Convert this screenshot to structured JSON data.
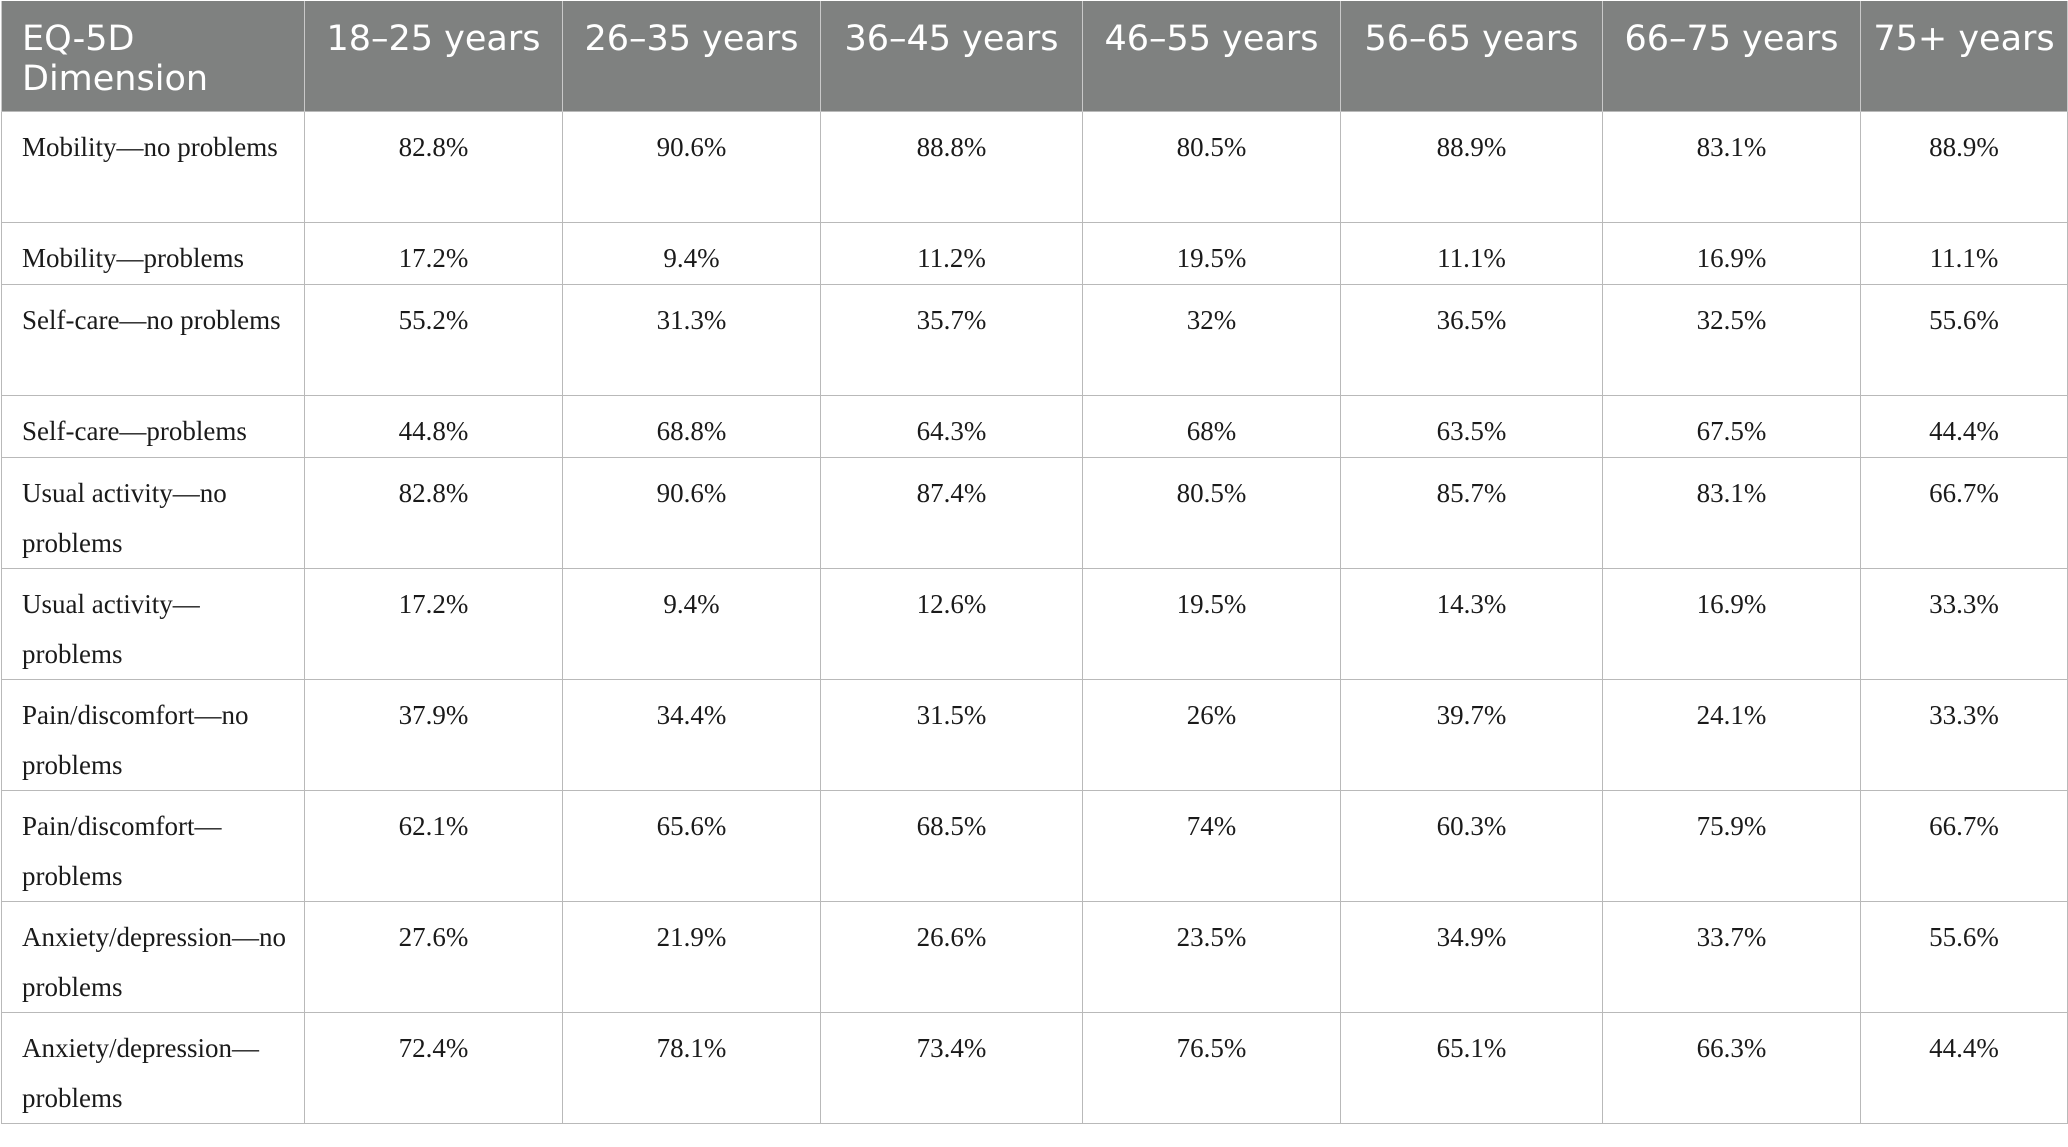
{
  "table": {
    "headers": [
      "EQ-5D Dimension",
      "18–25 years",
      "26–35 years",
      "36–45 years",
      "46–55 years",
      "56–65 years",
      "66–75 years",
      "75+ years"
    ],
    "rows": [
      {
        "dimension": "Mobility—no problems",
        "values": [
          "82.8%",
          "90.6%",
          "88.8%",
          "80.5%",
          "88.9%",
          "83.1%",
          "88.9%"
        ]
      },
      {
        "dimension": "Mobility—problems",
        "values": [
          "17.2%",
          "9.4%",
          "11.2%",
          "19.5%",
          "11.1%",
          "16.9%",
          "11.1%"
        ]
      },
      {
        "dimension": "Self-care—no problems",
        "values": [
          "55.2%",
          "31.3%",
          "35.7%",
          "32%",
          "36.5%",
          "32.5%",
          "55.6%"
        ]
      },
      {
        "dimension": "Self-care—problems",
        "values": [
          "44.8%",
          "68.8%",
          "64.3%",
          "68%",
          "63.5%",
          "67.5%",
          "44.4%"
        ]
      },
      {
        "dimension": "Usual activity—no problems",
        "values": [
          "82.8%",
          "90.6%",
          "87.4%",
          "80.5%",
          "85.7%",
          "83.1%",
          "66.7%"
        ]
      },
      {
        "dimension": "Usual activity—problems",
        "values": [
          "17.2%",
          "9.4%",
          "12.6%",
          "19.5%",
          "14.3%",
          "16.9%",
          "33.3%"
        ]
      },
      {
        "dimension": "Pain/discomfort—no problems",
        "values": [
          "37.9%",
          "34.4%",
          "31.5%",
          "26%",
          "39.7%",
          "24.1%",
          "33.3%"
        ]
      },
      {
        "dimension": "Pain/discomfort—problems",
        "values": [
          "62.1%",
          "65.6%",
          "68.5%",
          "74%",
          "60.3%",
          "75.9%",
          "66.7%"
        ]
      },
      {
        "dimension": "Anxiety/depression—no problems",
        "values": [
          "27.6%",
          "21.9%",
          "26.6%",
          "23.5%",
          "34.9%",
          "33.7%",
          "55.6%"
        ]
      },
      {
        "dimension": "Anxiety/depression—problems",
        "values": [
          "72.4%",
          "78.1%",
          "73.4%",
          "76.5%",
          "65.1%",
          "66.3%",
          "44.4%"
        ]
      }
    ]
  },
  "colors": {
    "header_background": "#7f8180",
    "header_text": "#ffffff",
    "grid_lines": "#b9b9b9"
  }
}
